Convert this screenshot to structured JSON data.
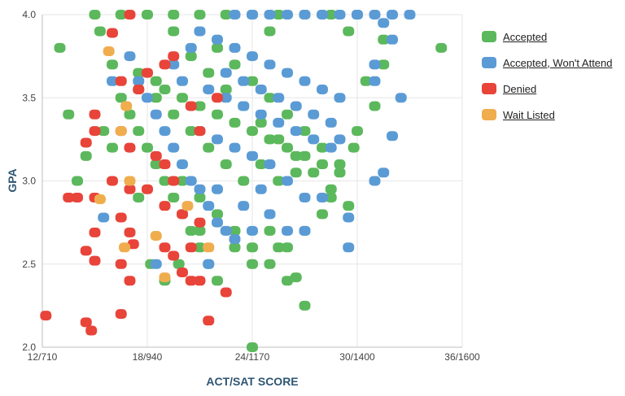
{
  "chart_data": {
    "type": "scatter",
    "title": "",
    "xlabel": "ACT/SAT SCORE",
    "ylabel": "GPA",
    "xlim": [
      12,
      36
    ],
    "ylim": [
      2.0,
      4.0
    ],
    "x_ticks": [
      {
        "value": 12,
        "label": "12/710"
      },
      {
        "value": 18,
        "label": "18/940"
      },
      {
        "value": 24,
        "label": "24/1170"
      },
      {
        "value": 30,
        "label": "30/1400"
      },
      {
        "value": 36,
        "label": "36/1600"
      }
    ],
    "y_ticks": [
      {
        "value": 2.0,
        "label": "2.0"
      },
      {
        "value": 2.5,
        "label": "2.5"
      },
      {
        "value": 3.0,
        "label": "3.0"
      },
      {
        "value": 3.5,
        "label": "3.5"
      },
      {
        "value": 4.0,
        "label": "4.0"
      }
    ],
    "grid": true,
    "legend_position": "right",
    "series": [
      {
        "name": "Accepted",
        "color": "#5cb85c",
        "points": [
          [
            15.0,
            4.0
          ],
          [
            16.5,
            4.0
          ],
          [
            18.0,
            4.0
          ],
          [
            19.5,
            4.0
          ],
          [
            21.0,
            4.0
          ],
          [
            22.5,
            4.0
          ],
          [
            24.0,
            4.0
          ],
          [
            25.5,
            4.0
          ],
          [
            27.0,
            4.0
          ],
          [
            28.5,
            4.0
          ],
          [
            30.0,
            4.0
          ],
          [
            13.0,
            3.8
          ],
          [
            34.8,
            3.8
          ],
          [
            15.3,
            3.9
          ],
          [
            19.5,
            3.9
          ],
          [
            25.0,
            3.9
          ],
          [
            29.5,
            3.9
          ],
          [
            31.5,
            3.85
          ],
          [
            16.0,
            3.7
          ],
          [
            17.5,
            3.65
          ],
          [
            18.5,
            3.6
          ],
          [
            19.0,
            3.55
          ],
          [
            20.0,
            3.5
          ],
          [
            21.0,
            3.45
          ],
          [
            22.0,
            3.4
          ],
          [
            23.0,
            3.35
          ],
          [
            24.0,
            3.3
          ],
          [
            25.0,
            3.25
          ],
          [
            26.0,
            3.2
          ],
          [
            27.0,
            3.15
          ],
          [
            28.0,
            3.1
          ],
          [
            29.0,
            3.05
          ],
          [
            16.5,
            3.5
          ],
          [
            17.0,
            3.4
          ],
          [
            17.5,
            3.3
          ],
          [
            18.0,
            3.2
          ],
          [
            18.5,
            3.1
          ],
          [
            19.0,
            3.0
          ],
          [
            19.5,
            2.9
          ],
          [
            20.0,
            2.8
          ],
          [
            20.5,
            2.7
          ],
          [
            21.0,
            2.6
          ],
          [
            21.5,
            2.5
          ],
          [
            22.0,
            2.4
          ],
          [
            20.5,
            3.75
          ],
          [
            21.5,
            3.65
          ],
          [
            22.5,
            3.55
          ],
          [
            23.5,
            3.45
          ],
          [
            24.5,
            3.35
          ],
          [
            25.5,
            3.25
          ],
          [
            26.5,
            3.15
          ],
          [
            27.5,
            3.05
          ],
          [
            28.5,
            2.95
          ],
          [
            29.5,
            2.85
          ],
          [
            22.0,
            3.8
          ],
          [
            23.0,
            3.7
          ],
          [
            24.0,
            3.6
          ],
          [
            25.0,
            3.5
          ],
          [
            26.0,
            3.4
          ],
          [
            27.0,
            3.3
          ],
          [
            28.0,
            3.2
          ],
          [
            29.0,
            3.1
          ],
          [
            20.0,
            3.0
          ],
          [
            21.0,
            2.9
          ],
          [
            22.0,
            2.8
          ],
          [
            23.0,
            2.7
          ],
          [
            24.0,
            2.6
          ],
          [
            25.0,
            2.5
          ],
          [
            26.0,
            2.4
          ],
          [
            13.5,
            3.4
          ],
          [
            14.0,
            3.0
          ],
          [
            14.5,
            3.15
          ],
          [
            15.5,
            3.3
          ],
          [
            16.0,
            3.2
          ],
          [
            17.5,
            2.9
          ],
          [
            18.2,
            2.5
          ],
          [
            19.0,
            2.4
          ],
          [
            19.8,
            2.5
          ],
          [
            21.0,
            2.7
          ],
          [
            23.0,
            2.6
          ],
          [
            24.0,
            2.5
          ],
          [
            25.0,
            2.7
          ],
          [
            25.5,
            2.6
          ],
          [
            30.5,
            3.6
          ],
          [
            31.0,
            3.45
          ],
          [
            31.5,
            3.7
          ],
          [
            30.0,
            3.3
          ],
          [
            29.8,
            3.2
          ],
          [
            28.5,
            2.9
          ],
          [
            28.0,
            2.8
          ],
          [
            27.0,
            2.7
          ],
          [
            26.0,
            2.6
          ],
          [
            26.5,
            2.42
          ],
          [
            27.0,
            2.25
          ],
          [
            24.0,
            2.0
          ],
          [
            22.5,
            3.1
          ],
          [
            23.5,
            3.0
          ],
          [
            24.5,
            3.1
          ],
          [
            25.5,
            3.0
          ],
          [
            26.5,
            3.05
          ],
          [
            21.5,
            3.2
          ],
          [
            20.5,
            3.3
          ],
          [
            19.5,
            3.4
          ],
          [
            18.5,
            3.5
          ],
          [
            17.5,
            3.55
          ]
        ]
      },
      {
        "name": "Accepted, Won't Attend",
        "color": "#5b9bd5",
        "points": [
          [
            30.0,
            4.0
          ],
          [
            31.0,
            4.0
          ],
          [
            32.0,
            4.0
          ],
          [
            33.0,
            4.0
          ],
          [
            29.0,
            4.0
          ],
          [
            28.0,
            4.0
          ],
          [
            27.0,
            4.0
          ],
          [
            26.0,
            4.0
          ],
          [
            25.0,
            4.0
          ],
          [
            24.0,
            4.0
          ],
          [
            23.0,
            4.0
          ],
          [
            31.5,
            3.95
          ],
          [
            32.0,
            3.85
          ],
          [
            31.0,
            3.7
          ],
          [
            31.0,
            3.6
          ],
          [
            32.5,
            3.5
          ],
          [
            32.0,
            3.27
          ],
          [
            31.5,
            3.05
          ],
          [
            31.0,
            3.0
          ],
          [
            29.5,
            2.78
          ],
          [
            29.5,
            2.6
          ],
          [
            17.0,
            3.75
          ],
          [
            17.5,
            3.6
          ],
          [
            18.0,
            3.5
          ],
          [
            18.5,
            3.4
          ],
          [
            19.0,
            3.3
          ],
          [
            19.5,
            3.2
          ],
          [
            20.0,
            3.1
          ],
          [
            20.5,
            3.0
          ],
          [
            21.0,
            2.95
          ],
          [
            21.5,
            2.85
          ],
          [
            22.0,
            2.75
          ],
          [
            22.5,
            2.7
          ],
          [
            23.0,
            2.65
          ],
          [
            24.0,
            2.7
          ],
          [
            25.0,
            2.8
          ],
          [
            26.0,
            2.7
          ],
          [
            27.0,
            2.7
          ],
          [
            21.0,
            3.9
          ],
          [
            22.0,
            3.85
          ],
          [
            23.0,
            3.8
          ],
          [
            24.0,
            3.75
          ],
          [
            25.0,
            3.7
          ],
          [
            26.0,
            3.65
          ],
          [
            27.0,
            3.6
          ],
          [
            28.0,
            3.55
          ],
          [
            29.0,
            3.5
          ],
          [
            21.5,
            3.55
          ],
          [
            22.5,
            3.5
          ],
          [
            23.5,
            3.45
          ],
          [
            24.5,
            3.4
          ],
          [
            25.5,
            3.35
          ],
          [
            26.5,
            3.3
          ],
          [
            27.5,
            3.25
          ],
          [
            28.5,
            3.2
          ],
          [
            21.0,
            3.3
          ],
          [
            22.0,
            3.25
          ],
          [
            23.0,
            3.2
          ],
          [
            24.0,
            3.15
          ],
          [
            25.0,
            3.1
          ],
          [
            26.0,
            3.0
          ],
          [
            27.0,
            2.9
          ],
          [
            28.0,
            2.9
          ],
          [
            16.0,
            3.6
          ],
          [
            15.5,
            2.78
          ],
          [
            18.5,
            2.5
          ],
          [
            21.5,
            2.5
          ],
          [
            22.0,
            2.95
          ],
          [
            23.5,
            2.85
          ],
          [
            24.5,
            2.95
          ],
          [
            20.0,
            3.6
          ],
          [
            19.5,
            3.7
          ],
          [
            20.5,
            3.8
          ],
          [
            22.5,
            3.65
          ],
          [
            23.5,
            3.6
          ],
          [
            24.5,
            3.55
          ],
          [
            25.5,
            3.5
          ],
          [
            26.5,
            3.45
          ],
          [
            27.5,
            3.4
          ],
          [
            28.5,
            3.35
          ],
          [
            29.0,
            3.25
          ]
        ]
      },
      {
        "name": "Denied",
        "color": "#e8443a",
        "points": [
          [
            17.0,
            4.0
          ],
          [
            16.0,
            3.89
          ],
          [
            19.5,
            3.75
          ],
          [
            19.0,
            3.7
          ],
          [
            18.0,
            3.65
          ],
          [
            16.5,
            3.6
          ],
          [
            17.5,
            3.55
          ],
          [
            15.0,
            3.4
          ],
          [
            15.0,
            3.3
          ],
          [
            14.5,
            3.23
          ],
          [
            16.5,
            3.3
          ],
          [
            17.0,
            3.2
          ],
          [
            18.5,
            3.15
          ],
          [
            19.0,
            3.1
          ],
          [
            19.5,
            3.0
          ],
          [
            13.5,
            2.9
          ],
          [
            14.0,
            2.9
          ],
          [
            15.0,
            2.9
          ],
          [
            16.0,
            3.0
          ],
          [
            17.0,
            2.95
          ],
          [
            18.0,
            2.95
          ],
          [
            19.0,
            2.85
          ],
          [
            20.0,
            2.8
          ],
          [
            21.0,
            2.75
          ],
          [
            15.0,
            2.69
          ],
          [
            16.5,
            2.78
          ],
          [
            17.0,
            2.69
          ],
          [
            17.2,
            2.62
          ],
          [
            19.0,
            2.6
          ],
          [
            19.5,
            2.55
          ],
          [
            20.5,
            2.6
          ],
          [
            14.5,
            2.58
          ],
          [
            15.0,
            2.52
          ],
          [
            16.5,
            2.5
          ],
          [
            17.0,
            2.4
          ],
          [
            20.0,
            2.45
          ],
          [
            20.5,
            2.4
          ],
          [
            21.0,
            2.4
          ],
          [
            22.5,
            2.33
          ],
          [
            12.2,
            2.19
          ],
          [
            14.5,
            2.15
          ],
          [
            14.8,
            2.1
          ],
          [
            16.5,
            2.2
          ],
          [
            21.5,
            2.16
          ],
          [
            22.0,
            3.5
          ],
          [
            21.0,
            3.3
          ],
          [
            20.5,
            3.45
          ]
        ]
      },
      {
        "name": "Wait Listed",
        "color": "#f0ad4e",
        "points": [
          [
            15.8,
            3.78
          ],
          [
            16.8,
            3.45
          ],
          [
            16.5,
            3.3
          ],
          [
            17.0,
            3.0
          ],
          [
            15.3,
            2.89
          ],
          [
            16.7,
            2.6
          ],
          [
            18.5,
            2.67
          ],
          [
            19.0,
            2.42
          ],
          [
            20.3,
            2.85
          ],
          [
            21.5,
            2.6
          ]
        ]
      }
    ]
  }
}
